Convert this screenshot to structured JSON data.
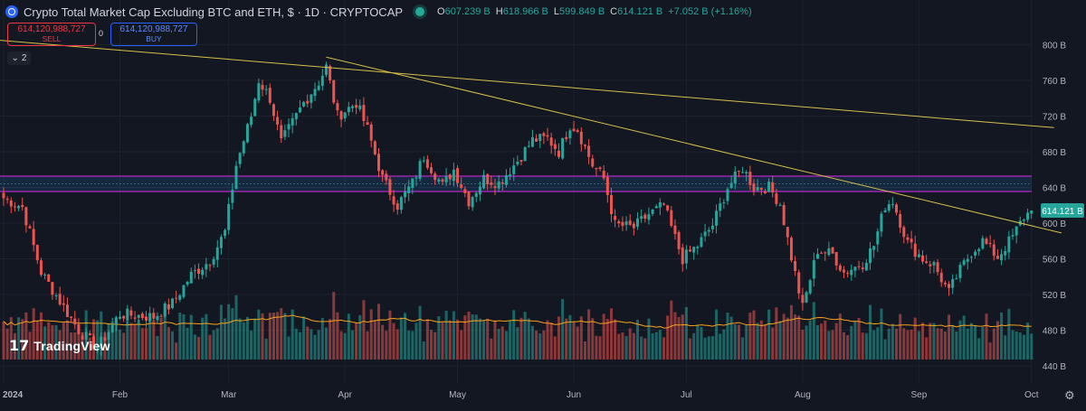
{
  "header": {
    "title": "Crypto Total Market Cap Excluding BTC and ETH, $ · 1D · CRYPTOCAP",
    "ohlc": [
      {
        "k": "O",
        "v": "607.239 B"
      },
      {
        "k": "H",
        "v": "618.966 B"
      },
      {
        "k": "L",
        "v": "599.849 B"
      },
      {
        "k": "C",
        "v": "614.121 B"
      },
      {
        "k": "",
        "v": "+7.052 B (+1.16%)"
      }
    ]
  },
  "trade": {
    "sell_value": "614,120,988,727",
    "sell_label": "SELL",
    "spread": "0",
    "buy_value": "614,120,988,727",
    "buy_label": "BUY"
  },
  "indicator_toggle": "2",
  "logo": {
    "mark": "17",
    "text": "TradingView"
  },
  "colors": {
    "up": "#26a69a",
    "down": "#ef5350",
    "trend": "#d6c04a",
    "zone": "#9c27b0",
    "ma": "#f7a21b",
    "bg": "#131722"
  },
  "chart_data": {
    "type": "candlestick",
    "y_unit": "B",
    "y_ticks": [
      "800 B",
      "760 B",
      "720 B",
      "680 B",
      "640 B",
      "600 B",
      "560 B",
      "520 B",
      "480 B",
      "440 B"
    ],
    "y_tick_values": [
      800,
      760,
      720,
      680,
      640,
      600,
      560,
      520,
      480,
      440
    ],
    "x_labels": [
      "2024",
      "Feb",
      "Mar",
      "Apr",
      "May",
      "Jun",
      "Jul",
      "Aug",
      "Sep",
      "Oct"
    ],
    "last_price_label": "614.121 B",
    "last_price": 614.121,
    "keypoints": [
      {
        "day": 0,
        "v": 628
      },
      {
        "day": 5,
        "v": 618
      },
      {
        "day": 10,
        "v": 545
      },
      {
        "day": 20,
        "v": 480
      },
      {
        "day": 25,
        "v": 460
      },
      {
        "day": 31,
        "v": 498
      },
      {
        "day": 40,
        "v": 495
      },
      {
        "day": 45,
        "v": 510
      },
      {
        "day": 50,
        "v": 542
      },
      {
        "day": 55,
        "v": 558
      },
      {
        "day": 59,
        "v": 590
      },
      {
        "day": 62,
        "v": 665
      },
      {
        "day": 66,
        "v": 720
      },
      {
        "day": 68,
        "v": 760
      },
      {
        "day": 71,
        "v": 740
      },
      {
        "day": 74,
        "v": 690
      },
      {
        "day": 80,
        "v": 735
      },
      {
        "day": 84,
        "v": 758
      },
      {
        "day": 86,
        "v": 775
      },
      {
        "day": 89,
        "v": 720
      },
      {
        "day": 94,
        "v": 735
      },
      {
        "day": 97,
        "v": 705
      },
      {
        "day": 101,
        "v": 650
      },
      {
        "day": 105,
        "v": 620
      },
      {
        "day": 109,
        "v": 645
      },
      {
        "day": 112,
        "v": 675
      },
      {
        "day": 117,
        "v": 642
      },
      {
        "day": 120,
        "v": 660
      },
      {
        "day": 124,
        "v": 625
      },
      {
        "day": 128,
        "v": 650
      },
      {
        "day": 132,
        "v": 645
      },
      {
        "day": 137,
        "v": 670
      },
      {
        "day": 141,
        "v": 693
      },
      {
        "day": 145,
        "v": 695
      },
      {
        "day": 148,
        "v": 680
      },
      {
        "day": 151,
        "v": 710
      },
      {
        "day": 153,
        "v": 705
      },
      {
        "day": 157,
        "v": 665
      },
      {
        "day": 160,
        "v": 650
      },
      {
        "day": 163,
        "v": 598
      },
      {
        "day": 168,
        "v": 595
      },
      {
        "day": 172,
        "v": 610
      },
      {
        "day": 176,
        "v": 620
      },
      {
        "day": 178,
        "v": 595
      },
      {
        "day": 181,
        "v": 560
      },
      {
        "day": 185,
        "v": 575
      },
      {
        "day": 189,
        "v": 598
      },
      {
        "day": 193,
        "v": 640
      },
      {
        "day": 197,
        "v": 662
      },
      {
        "day": 200,
        "v": 640
      },
      {
        "day": 204,
        "v": 640
      },
      {
        "day": 207,
        "v": 622
      },
      {
        "day": 210,
        "v": 562
      },
      {
        "day": 213,
        "v": 505
      },
      {
        "day": 217,
        "v": 570
      },
      {
        "day": 221,
        "v": 565
      },
      {
        "day": 224,
        "v": 545
      },
      {
        "day": 229,
        "v": 555
      },
      {
        "day": 232,
        "v": 575
      },
      {
        "day": 235,
        "v": 620
      },
      {
        "day": 237,
        "v": 625
      },
      {
        "day": 241,
        "v": 578
      },
      {
        "day": 245,
        "v": 560
      },
      {
        "day": 248,
        "v": 553
      },
      {
        "day": 252,
        "v": 522
      },
      {
        "day": 254,
        "v": 540
      },
      {
        "day": 258,
        "v": 568
      },
      {
        "day": 261,
        "v": 580
      },
      {
        "day": 265,
        "v": 562
      },
      {
        "day": 269,
        "v": 585
      },
      {
        "day": 272,
        "v": 607
      },
      {
        "day": 274,
        "v": 614
      }
    ]
  }
}
